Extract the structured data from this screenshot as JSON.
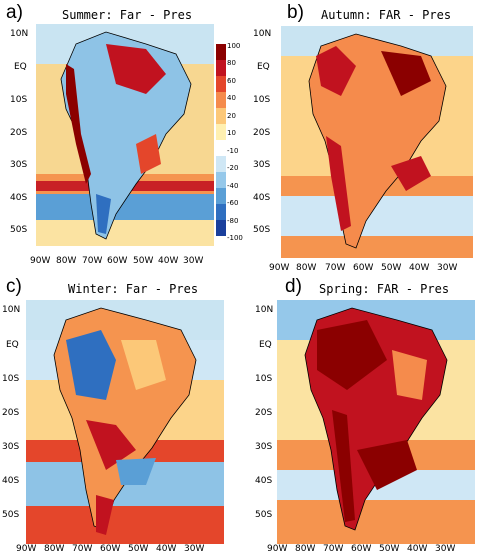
{
  "panels": [
    {
      "letter": "a)",
      "title": "Summer: Far - Pres"
    },
    {
      "letter": "b)",
      "title": "Autumn: FAR - Pres"
    },
    {
      "letter": "c)",
      "title": "Winter: Far - Pres"
    },
    {
      "letter": "d)",
      "title": "Spring: FAR - Pres"
    }
  ],
  "lat_ticks": [
    "10N",
    "EQ",
    "10S",
    "20S",
    "30S",
    "40S",
    "50S"
  ],
  "lon_ticks": [
    "90W",
    "80W",
    "70W",
    "60W",
    "50W",
    "40W",
    "30W"
  ],
  "colorbar": {
    "labels": [
      "100",
      "80",
      "60",
      "40",
      "20",
      "10",
      "-10",
      "-20",
      "-40",
      "-60",
      "-80",
      "-100"
    ],
    "colors": [
      "#8b0000",
      "#c1121f",
      "#e4462b",
      "#f58b4c",
      "#fcc878",
      "#fff0b0",
      "#ffffff",
      "#cfe7f5",
      "#95c8ea",
      "#5a9fd6",
      "#2f6fc0",
      "#1a3f9c"
    ]
  }
}
